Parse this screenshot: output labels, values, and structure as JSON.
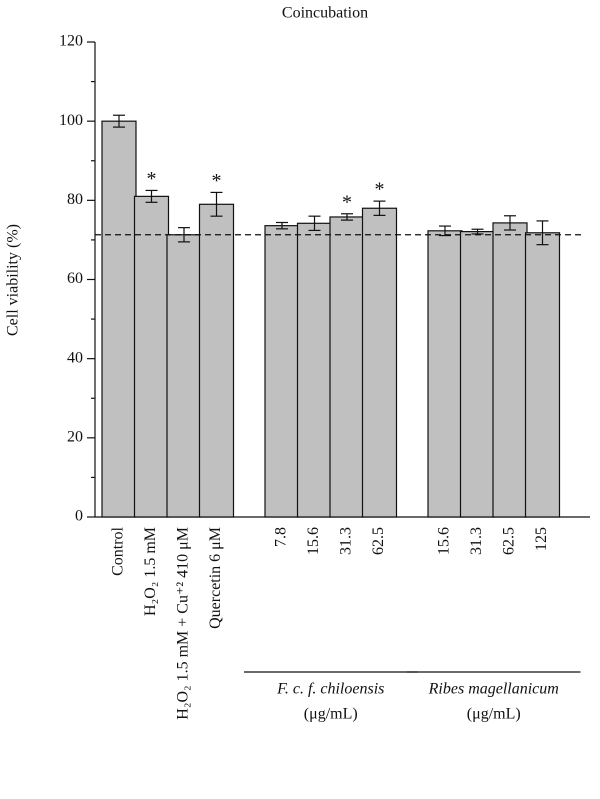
{
  "chart_data": {
    "type": "bar",
    "title": "Coincubation",
    "y_label": "Cell viability (%)",
    "categories": [
      "Control",
      "H₂O₂ 1.5 mM",
      "H₂O₂ 1.5 mM + Cu⁺² 410 μM",
      "Quercetin 6 μM",
      "7.8",
      "15.6",
      "31.3",
      "62.5",
      "15.6",
      "31.3",
      "62.5",
      "125"
    ],
    "values": [
      100,
      81,
      71.3,
      79,
      73.6,
      74.2,
      75.8,
      78,
      72.3,
      72.1,
      74.3,
      71.8
    ],
    "errors": [
      1.5,
      1.5,
      1.8,
      3,
      0.8,
      1.8,
      0.8,
      1.8,
      1.2,
      0.6,
      1.8,
      3
    ],
    "color": "#c0c0c0",
    "annotations": [
      {
        "text": "*",
        "index": 1
      },
      {
        "text": "*",
        "index": 3
      },
      {
        "text": "*",
        "index": 6
      },
      {
        "text": "*",
        "index": 7
      }
    ],
    "reference_line": 71.3,
    "groups": [
      {
        "name": "F. c. f. chiloensis",
        "unit": "(μg/mL)"
      },
      {
        "name": "Ribes magellanicum",
        "unit": "(μg/mL)"
      }
    ],
    "ylim": [
      0,
      120
    ],
    "yticks": [
      0,
      20,
      40,
      60,
      80,
      100,
      120
    ],
    "yminorticks": [
      10,
      30,
      50,
      70,
      90,
      110
    ]
  }
}
